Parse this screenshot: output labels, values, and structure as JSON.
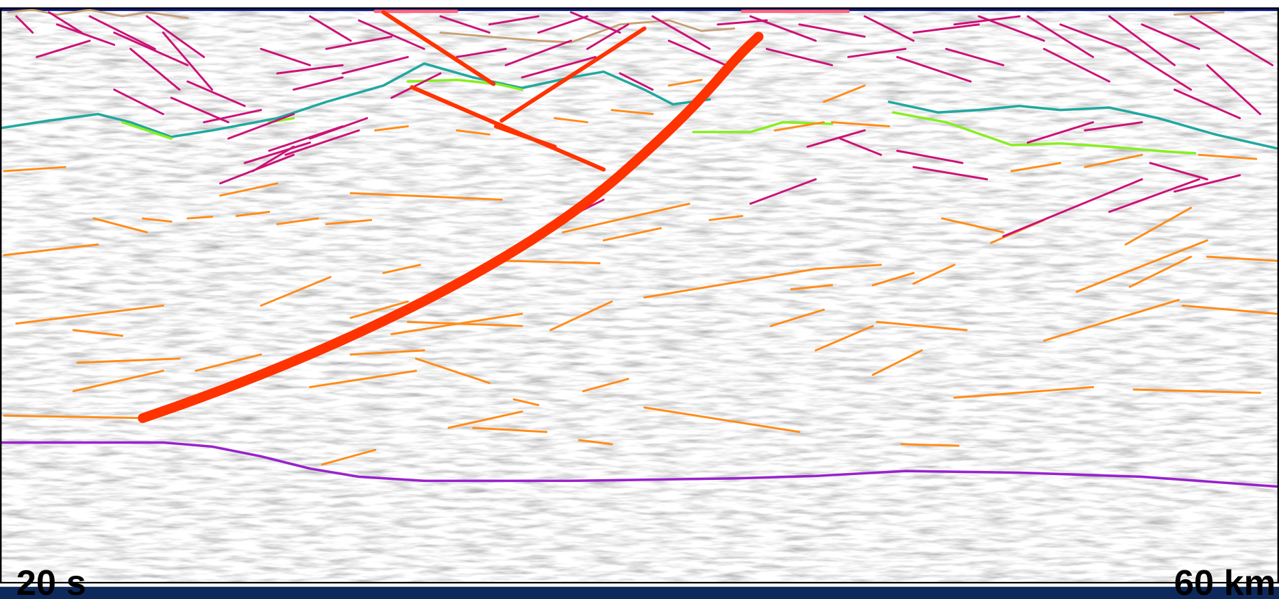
{
  "labels": {
    "left": "20 s",
    "right": "60 km"
  }
}
